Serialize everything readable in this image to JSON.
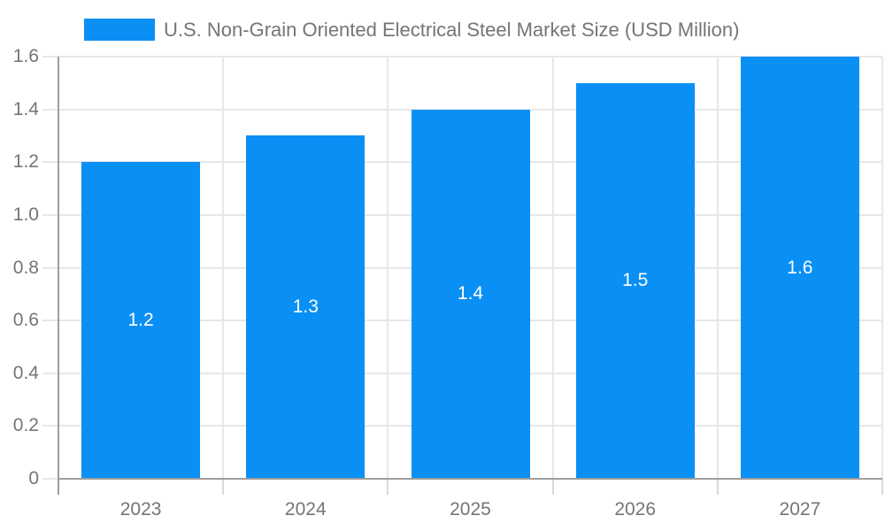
{
  "chart_data": {
    "type": "bar",
    "title": "U.S. Non-Grain Oriented Electrical Steel Market Size (USD Million)",
    "categories": [
      "2023",
      "2024",
      "2025",
      "2026",
      "2027"
    ],
    "series": [
      {
        "name": "U.S. Non-Grain Oriented Electrical Steel Market Size (USD Million)",
        "values": [
          1.2,
          1.3,
          1.4,
          1.5,
          1.6
        ]
      }
    ],
    "bar_value_labels": [
      "1.2",
      "1.3",
      "1.4",
      "1.5",
      "1.6"
    ],
    "xlabel": "",
    "ylabel": "",
    "ylim": [
      0,
      1.6
    ],
    "ytick_step": 0.2,
    "ytick_labels": [
      "0",
      "0.2",
      "0.4",
      "0.6",
      "0.8",
      "1.0",
      "1.2",
      "1.4",
      "1.6"
    ],
    "grid": true,
    "legend_position": "top"
  },
  "colors": {
    "bar": "#0a90f5",
    "axis_text": "#757575",
    "grid_line": "#e7e7e7",
    "tick_line": "#d9d9d9",
    "axis_line": "#9e9e9e",
    "bar_label_text": "#ffffff",
    "background": "#ffffff"
  }
}
